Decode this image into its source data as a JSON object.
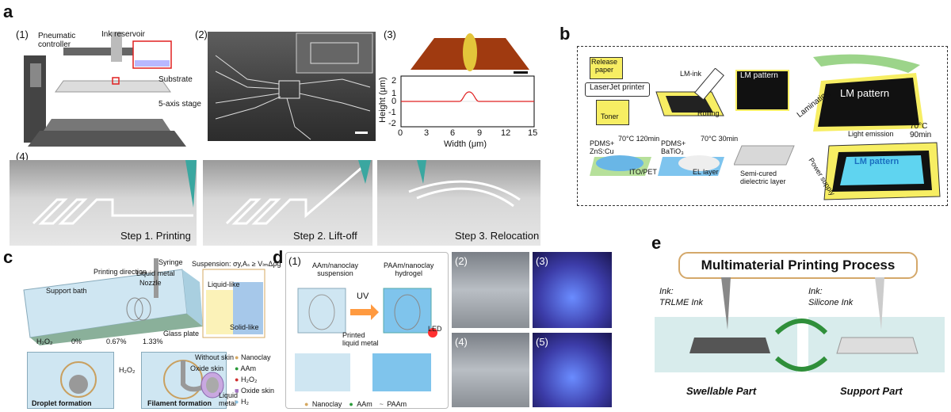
{
  "panel_a": {
    "label": "a",
    "sub1": "(1)",
    "sub2": "(2)",
    "sub3": "(3)",
    "sub4": "(4)",
    "pneumatic_controller": "Pneumatic\ncontroller",
    "ink_reservoir": "Ink reservoir",
    "substrate": "Substrate",
    "five_axis_stage": "5-axis stage",
    "step1": "Step 1. Printing",
    "step2": "Step 2. Lift-off",
    "step3": "Step 3. Relocation",
    "plot": {
      "ylabel": "Height (μm)",
      "xlabel": "Width (μm)",
      "xticks": [
        "0",
        "3",
        "6",
        "9",
        "12",
        "15"
      ],
      "yticks": [
        "2",
        "1",
        "0",
        "-1",
        "-2"
      ]
    }
  },
  "panel_b": {
    "label": "b",
    "release_paper": "Release\npaper",
    "laserjet": "LaserJet printer",
    "toner": "Toner",
    "lm_ink": "LM-ink",
    "rolling": "Rolling",
    "lm_pattern_small": "LM pattern",
    "lm_pattern_big": "LM pattern",
    "laminating": "Laminating",
    "temp_90": "70°C 90min",
    "pdms_zns": "PDMS+\nZnS:Cu",
    "temp_120": "70°C  120min",
    "ito_pet": "ITO/PET",
    "pdms_batio": "PDMS+\nBaTiO₃",
    "temp_30": "70°C 30min",
    "el_layer": "EL layer",
    "semi_cured": "Semi-cured\ndielectric layer",
    "light_emission": "Light emission",
    "power_supply": "Power supply",
    "lm_pattern_glow": "LM pattern"
  },
  "panel_c": {
    "label": "c",
    "printing_direction": "Printing direction",
    "syringe": "Syringe",
    "liquid_metal": "Liquid metal",
    "nozzle": "Nozzle",
    "support_bath": "Support bath",
    "glass_plate": "Glass plate",
    "suspension": "Suspension: σy,Aₛ ≥ VₗₘΔρg",
    "liquid_like": "Liquid-like",
    "solid_like": "Solid-like",
    "h2o2": "H₂O₂",
    "pct0": "0%",
    "pct1": "0.67%",
    "pct2": "1.33%",
    "without_skin": "Without skin",
    "oxide_skin": "Oxide skin",
    "liquid_metal_2": "Liquid\nmetal",
    "legend": [
      "Nanoclay",
      "AAm",
      "H₂O₂",
      "Oxide skin",
      "H₂"
    ],
    "droplet": "Droplet formation",
    "filament": "Filament formation"
  },
  "panel_d": {
    "label": "d",
    "sub1": "(1)",
    "sub2": "(2)",
    "sub3": "(3)",
    "sub4": "(4)",
    "sub5": "(5)",
    "aam_suspension": "AAm/nanoclay\nsuspension",
    "paam_hydrogel": "PAAm/nanoclay\nhydrogel",
    "uv": "UV",
    "printed_lm": "Printed\nliquid metal",
    "led": "LED",
    "legend": [
      "Nanoclay",
      "AAm",
      "PAAm"
    ]
  },
  "panel_e": {
    "label": "e",
    "title": "Multimaterial Printing Process",
    "ink1_title": "Ink:",
    "ink1_name": "TRLME Ink",
    "ink2_title": "Ink:",
    "ink2_name": "Silicone Ink",
    "swellable": "Swellable Part",
    "support": "Support Part"
  },
  "colors": {
    "accent_green": "#2f8f3a",
    "title_border": "#d4a86a",
    "support_bath": "#cfe6f2",
    "lm_yellow": "#f2e35a"
  }
}
